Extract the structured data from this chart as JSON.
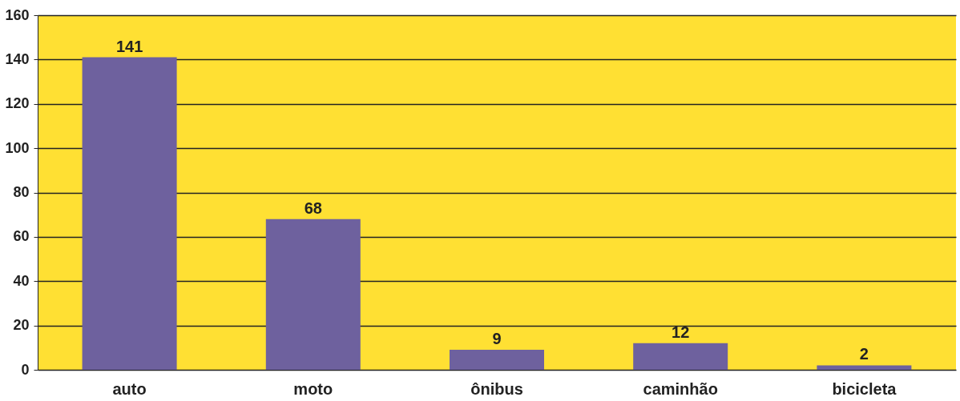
{
  "chart_data": {
    "type": "bar",
    "categories": [
      "auto",
      "moto",
      "ônibus",
      "caminhão",
      "bicicleta"
    ],
    "values": [
      141,
      68,
      9,
      12,
      2
    ],
    "color": "#6e619e",
    "ylim": [
      0,
      160
    ],
    "yticks": [
      0,
      20,
      40,
      60,
      80,
      100,
      120,
      140,
      160
    ],
    "grid": "y",
    "data_labels": true
  }
}
